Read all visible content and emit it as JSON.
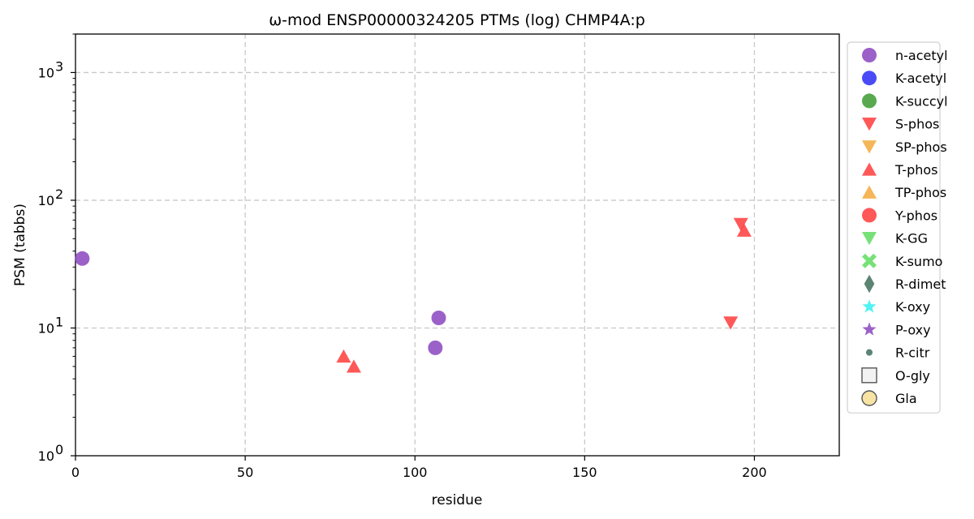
{
  "chart_data": {
    "type": "scatter",
    "title": "ω-mod ENSP00000324205 PTMs (log) CHMP4A:p",
    "xlabel": "residue",
    "ylabel": "PSM (tabbs)",
    "xlim": [
      0,
      225
    ],
    "ylim": [
      1,
      2000
    ],
    "yscale": "log",
    "grid": true,
    "legend_position": "outside-right",
    "x_ticks": [
      0,
      50,
      100,
      150,
      200
    ],
    "y_ticks": [
      {
        "value": 1,
        "base": "10",
        "exp": "0"
      },
      {
        "value": 10,
        "base": "10",
        "exp": "1"
      },
      {
        "value": 100,
        "base": "10",
        "exp": "2"
      },
      {
        "value": 1000,
        "base": "10",
        "exp": "3"
      }
    ],
    "series": [
      {
        "name": "n-acetyl",
        "marker": "circle",
        "color": "#8a45c0",
        "points": [
          {
            "x": 2,
            "y": 35
          },
          {
            "x": 106,
            "y": 7
          },
          {
            "x": 107,
            "y": 12
          }
        ]
      },
      {
        "name": "K-acetyl",
        "marker": "circle",
        "color": "#2b2bf5",
        "points": []
      },
      {
        "name": "K-succyl",
        "marker": "circle",
        "color": "#3c9a32",
        "points": []
      },
      {
        "name": "S-phos",
        "marker": "triangle-down",
        "color": "#ff3b3b",
        "points": [
          {
            "x": 193,
            "y": 11
          },
          {
            "x": 196,
            "y": 65
          }
        ]
      },
      {
        "name": "SP-phos",
        "marker": "triangle-down",
        "color": "#f2a93b",
        "points": []
      },
      {
        "name": "T-phos",
        "marker": "triangle-up",
        "color": "#ff3b3b",
        "points": [
          {
            "x": 79,
            "y": 6
          },
          {
            "x": 82,
            "y": 5
          },
          {
            "x": 197,
            "y": 58
          }
        ]
      },
      {
        "name": "TP-phos",
        "marker": "triangle-up",
        "color": "#f2a93b",
        "points": []
      },
      {
        "name": "Y-phos",
        "marker": "circle",
        "color": "#ff3b3b",
        "points": []
      },
      {
        "name": "K-GG",
        "marker": "triangle-down",
        "color": "#5fdc5f",
        "points": []
      },
      {
        "name": "K-sumo",
        "marker": "x",
        "color": "#5fdc5f",
        "points": []
      },
      {
        "name": "R-dimet",
        "marker": "diamond",
        "color": "#3f6e5a",
        "points": []
      },
      {
        "name": "K-oxy",
        "marker": "star",
        "color": "#33f0f0",
        "points": []
      },
      {
        "name": "P-oxy",
        "marker": "star",
        "color": "#8a45c0",
        "points": []
      },
      {
        "name": "R-citr",
        "marker": "small-circle",
        "color": "#3f6e5a",
        "points": []
      },
      {
        "name": "O-gly",
        "marker": "square",
        "color": "#f2f2f2",
        "points": []
      },
      {
        "name": "Gla",
        "marker": "circle-outline",
        "color": "#f7e3a3",
        "points": []
      }
    ]
  }
}
